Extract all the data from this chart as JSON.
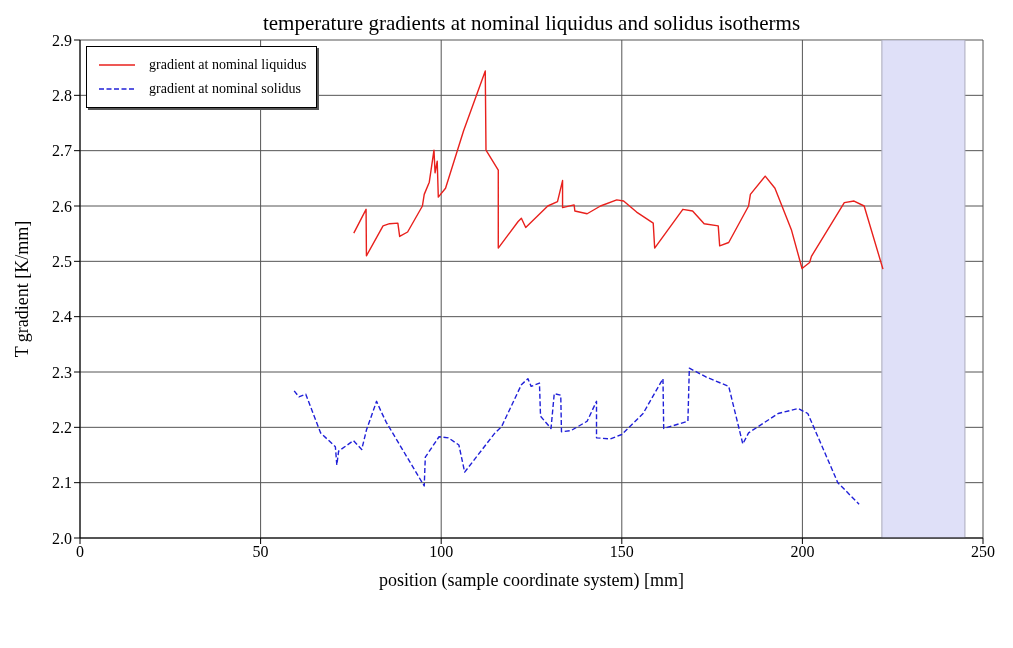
{
  "chart_data": {
    "type": "line",
    "title": "temperature gradients at nominal liquidus and solidus isotherms",
    "xlabel": "position (sample coordinate system) [mm]",
    "ylabel": "T gradient [K/mm]",
    "xlim": [
      0,
      250
    ],
    "xticks": [
      0,
      50,
      100,
      150,
      200,
      250
    ],
    "ylim": [
      2.0,
      2.9
    ],
    "yticks": [
      {
        "value": 2.0,
        "label": "2.0"
      },
      2.1,
      2.2,
      2.3,
      2.4,
      2.5,
      2.6,
      2.7,
      2.8,
      2.9
    ],
    "grid": true,
    "legend": "top left",
    "bands": [
      {
        "axis": "x",
        "from": 222,
        "to": 245,
        "color": "#dfe0f8"
      }
    ],
    "series": [
      {
        "name": "gradient at nominal liquidus",
        "color": "#e8201c",
        "line_style": "solid",
        "x": [
          75.8,
          79.2,
          79.3,
          83.9,
          85.7,
          88.0,
          88.5,
          90.7,
          94.8,
          95.3,
          96.7,
          98.0,
          98.3,
          98.9,
          99.2,
          101.2,
          106.2,
          112.2,
          112.4,
          115.8,
          115.8,
          121.3,
          122.2,
          123.4,
          129.5,
          132.2,
          133.6,
          133.6,
          136.8,
          137.0,
          140.4,
          144.1,
          148.6,
          150.5,
          154.1,
          158.7,
          159.1,
          166.9,
          169.6,
          172.8,
          176.7,
          177.1,
          179.6,
          185.1,
          185.6,
          189.7,
          192.4,
          197.0,
          199.9,
          202.0,
          202.5,
          211.6,
          214.3,
          217.1,
          222.3
        ],
        "values": [
          2.551,
          2.594,
          2.51,
          2.564,
          2.568,
          2.569,
          2.545,
          2.553,
          2.6,
          2.621,
          2.643,
          2.701,
          2.66,
          2.681,
          2.616,
          2.632,
          2.736,
          2.844,
          2.701,
          2.665,
          2.524,
          2.572,
          2.578,
          2.561,
          2.6,
          2.608,
          2.646,
          2.597,
          2.602,
          2.591,
          2.586,
          2.6,
          2.611,
          2.609,
          2.589,
          2.569,
          2.524,
          2.594,
          2.591,
          2.568,
          2.564,
          2.528,
          2.534,
          2.6,
          2.621,
          2.654,
          2.632,
          2.556,
          2.487,
          2.498,
          2.509,
          2.606,
          2.609,
          2.6,
          2.486
        ]
      },
      {
        "name": "gradient at nominal solidus",
        "color": "#2020d8",
        "line_style": "dashed",
        "x": [
          59.3,
          60.6,
          62.5,
          66.6,
          70.7,
          71.1,
          71.6,
          75.7,
          78.0,
          79.3,
          82.1,
          83.4,
          84.8,
          95.3,
          95.6,
          99.4,
          102.0,
          104.9,
          106.5,
          114.9,
          116.7,
          122.2,
          124.0,
          124.9,
          127.2,
          127.5,
          130.4,
          131.3,
          133.1,
          133.3,
          135.9,
          140.4,
          143.0,
          143.0,
          146.8,
          150.0,
          155.9,
          161.4,
          161.6,
          168.3,
          168.7,
          173.3,
          179.6,
          183.5,
          185.1,
          193.3,
          198.8,
          201.5,
          209.8,
          215.7
        ],
        "values": [
          2.266,
          2.255,
          2.26,
          2.19,
          2.165,
          2.132,
          2.157,
          2.176,
          2.16,
          2.195,
          2.247,
          2.228,
          2.209,
          2.094,
          2.146,
          2.183,
          2.181,
          2.168,
          2.119,
          2.19,
          2.201,
          2.277,
          2.288,
          2.274,
          2.28,
          2.22,
          2.198,
          2.261,
          2.258,
          2.192,
          2.194,
          2.211,
          2.247,
          2.181,
          2.179,
          2.187,
          2.225,
          2.288,
          2.198,
          2.211,
          2.307,
          2.291,
          2.274,
          2.17,
          2.19,
          2.225,
          2.234,
          2.225,
          2.1,
          2.061
        ]
      }
    ]
  }
}
